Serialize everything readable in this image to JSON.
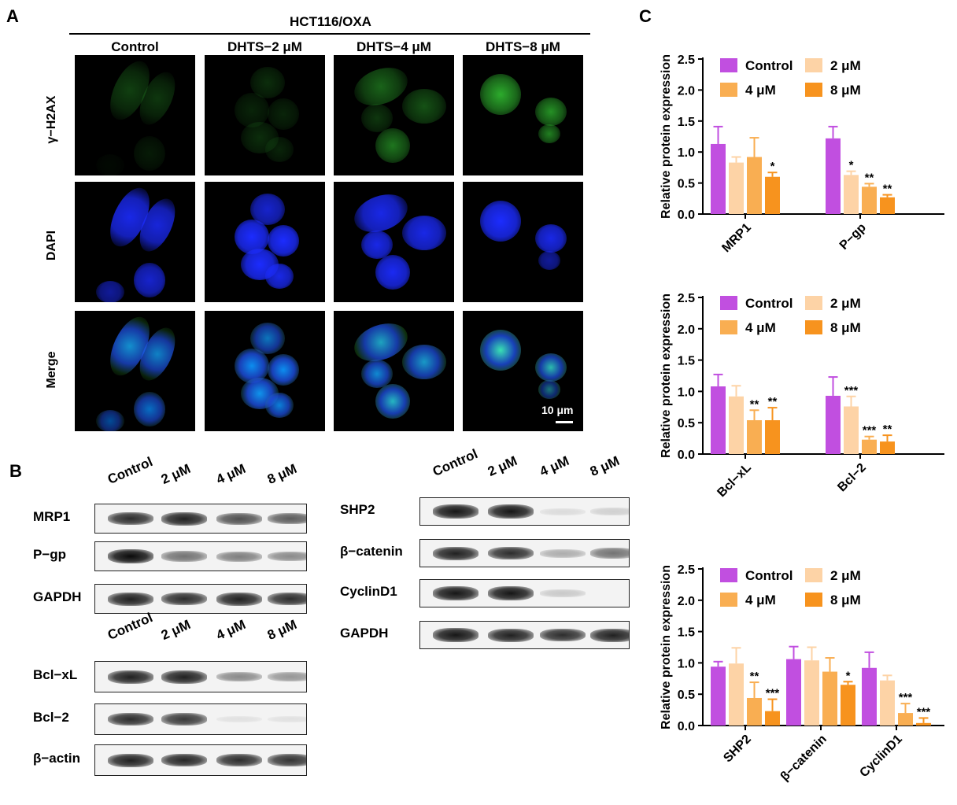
{
  "panels": {
    "a": "A",
    "b": "B",
    "c": "C"
  },
  "panel_a": {
    "title": "HCT116/OXA",
    "columns": [
      "Control",
      "DHTS−2 μM",
      "DHTS−4 μM",
      "DHTS−8 μM"
    ],
    "rows": [
      "γ−H2AX",
      "DAPI",
      "Merge"
    ],
    "scale_bar": "10 μm",
    "colors": {
      "green": "#2fb52f",
      "blue": "#1c2cff",
      "background": "#000000"
    }
  },
  "panel_b": {
    "top_left": {
      "lanes": [
        "Control",
        "2 μM",
        "4 μM",
        "8 μM"
      ],
      "bands": [
        {
          "label": "MRP1",
          "intensity": [
            0.85,
            0.9,
            0.7,
            0.65
          ]
        },
        {
          "label": "P−gp",
          "intensity": [
            1.0,
            0.55,
            0.5,
            0.45
          ]
        },
        {
          "label": "GAPDH",
          "intensity": [
            0.9,
            0.85,
            0.9,
            0.85
          ]
        }
      ]
    },
    "bottom_left": {
      "lanes": [
        "Control",
        "2 μM",
        "4 μM",
        "8 μM"
      ],
      "bands": [
        {
          "label": "Bcl−xL",
          "intensity": [
            0.9,
            0.9,
            0.45,
            0.4
          ]
        },
        {
          "label": "Bcl−2",
          "intensity": [
            0.85,
            0.8,
            0.08,
            0.06
          ]
        },
        {
          "label": "β−actin",
          "intensity": [
            0.9,
            0.88,
            0.85,
            0.82
          ]
        }
      ]
    },
    "right": {
      "lanes": [
        "Control",
        "2 μM",
        "4 μM",
        "8 μM"
      ],
      "bands": [
        {
          "label": "SHP2",
          "intensity": [
            0.95,
            0.95,
            0.1,
            0.15
          ]
        },
        {
          "label": "β−catenin",
          "intensity": [
            0.9,
            0.85,
            0.3,
            0.55
          ]
        },
        {
          "label": "CyclinD1",
          "intensity": [
            0.95,
            0.95,
            0.18,
            0.0
          ]
        },
        {
          "label": "GAPDH",
          "intensity": [
            0.95,
            0.9,
            0.85,
            0.9
          ]
        }
      ]
    }
  },
  "chart_data": [
    {
      "type": "bar",
      "categories": [
        "MRP1",
        "P−gp"
      ],
      "ylabel": "Relative  protein expression",
      "ylim": [
        0,
        2.5
      ],
      "yticks": [
        "0.0",
        "0.5",
        "1.0",
        "1.5",
        "2.0",
        "2.5"
      ],
      "series": [
        {
          "name": "Control",
          "color": "#c14fe0",
          "values": [
            1.13,
            1.22
          ],
          "errors": [
            0.28,
            0.19
          ],
          "sig": [
            "",
            ""
          ]
        },
        {
          "name": "2 μM",
          "color": "#fdd3a6",
          "values": [
            0.83,
            0.63
          ],
          "errors": [
            0.09,
            0.06
          ],
          "sig": [
            "",
            "*"
          ]
        },
        {
          "name": "4 μM",
          "color": "#f9ae52",
          "values": [
            0.92,
            0.44
          ],
          "errors": [
            0.31,
            0.05
          ],
          "sig": [
            "",
            "**"
          ]
        },
        {
          "name": "8 μM",
          "color": "#f7931e",
          "values": [
            0.6,
            0.27
          ],
          "errors": [
            0.07,
            0.04
          ],
          "sig": [
            "*",
            "**"
          ]
        }
      ],
      "grid": false,
      "legend": "top"
    },
    {
      "type": "bar",
      "categories": [
        "Bcl−xL",
        "Bcl−2"
      ],
      "ylabel": "Relative  protein expression",
      "ylim": [
        0,
        2.5
      ],
      "yticks": [
        "0.0",
        "0.5",
        "1.0",
        "1.5",
        "2.0",
        "2.5"
      ],
      "series": [
        {
          "name": "Control",
          "color": "#c14fe0",
          "values": [
            1.08,
            0.93
          ],
          "errors": [
            0.19,
            0.3
          ],
          "sig": [
            "",
            ""
          ]
        },
        {
          "name": "2 μM",
          "color": "#fdd3a6",
          "values": [
            0.92,
            0.76
          ],
          "errors": [
            0.17,
            0.16
          ],
          "sig": [
            "",
            "***"
          ]
        },
        {
          "name": "4 μM",
          "color": "#f9ae52",
          "values": [
            0.54,
            0.23
          ],
          "errors": [
            0.16,
            0.05
          ],
          "sig": [
            "**",
            "***"
          ]
        },
        {
          "name": "8 μM",
          "color": "#f7931e",
          "values": [
            0.54,
            0.2
          ],
          "errors": [
            0.2,
            0.1
          ],
          "sig": [
            "**",
            "**"
          ]
        }
      ],
      "grid": false,
      "legend": "top"
    },
    {
      "type": "bar",
      "categories": [
        "SHP2",
        "β−catenin",
        "CyclinD1"
      ],
      "ylabel": "Relative  protein expression",
      "ylim": [
        0,
        2.5
      ],
      "yticks": [
        "0.0",
        "0.5",
        "1.0",
        "1.5",
        "2.0",
        "2.5"
      ],
      "series": [
        {
          "name": "Control",
          "color": "#c14fe0",
          "values": [
            0.94,
            1.06,
            0.92
          ],
          "errors": [
            0.08,
            0.2,
            0.25
          ],
          "sig": [
            "",
            "",
            ""
          ]
        },
        {
          "name": "2 μM",
          "color": "#fdd3a6",
          "values": [
            0.99,
            1.04,
            0.72
          ],
          "errors": [
            0.25,
            0.21,
            0.08
          ],
          "sig": [
            "",
            "",
            ""
          ]
        },
        {
          "name": "4 μM",
          "color": "#f9ae52",
          "values": [
            0.44,
            0.86,
            0.2
          ],
          "errors": [
            0.25,
            0.22,
            0.15
          ],
          "sig": [
            "**",
            "",
            "***"
          ]
        },
        {
          "name": "8 μM",
          "color": "#f7931e",
          "values": [
            0.23,
            0.65,
            0.04
          ],
          "errors": [
            0.19,
            0.05,
            0.08
          ],
          "sig": [
            "***",
            "*",
            "***"
          ]
        }
      ],
      "grid": false,
      "legend": "top"
    }
  ]
}
